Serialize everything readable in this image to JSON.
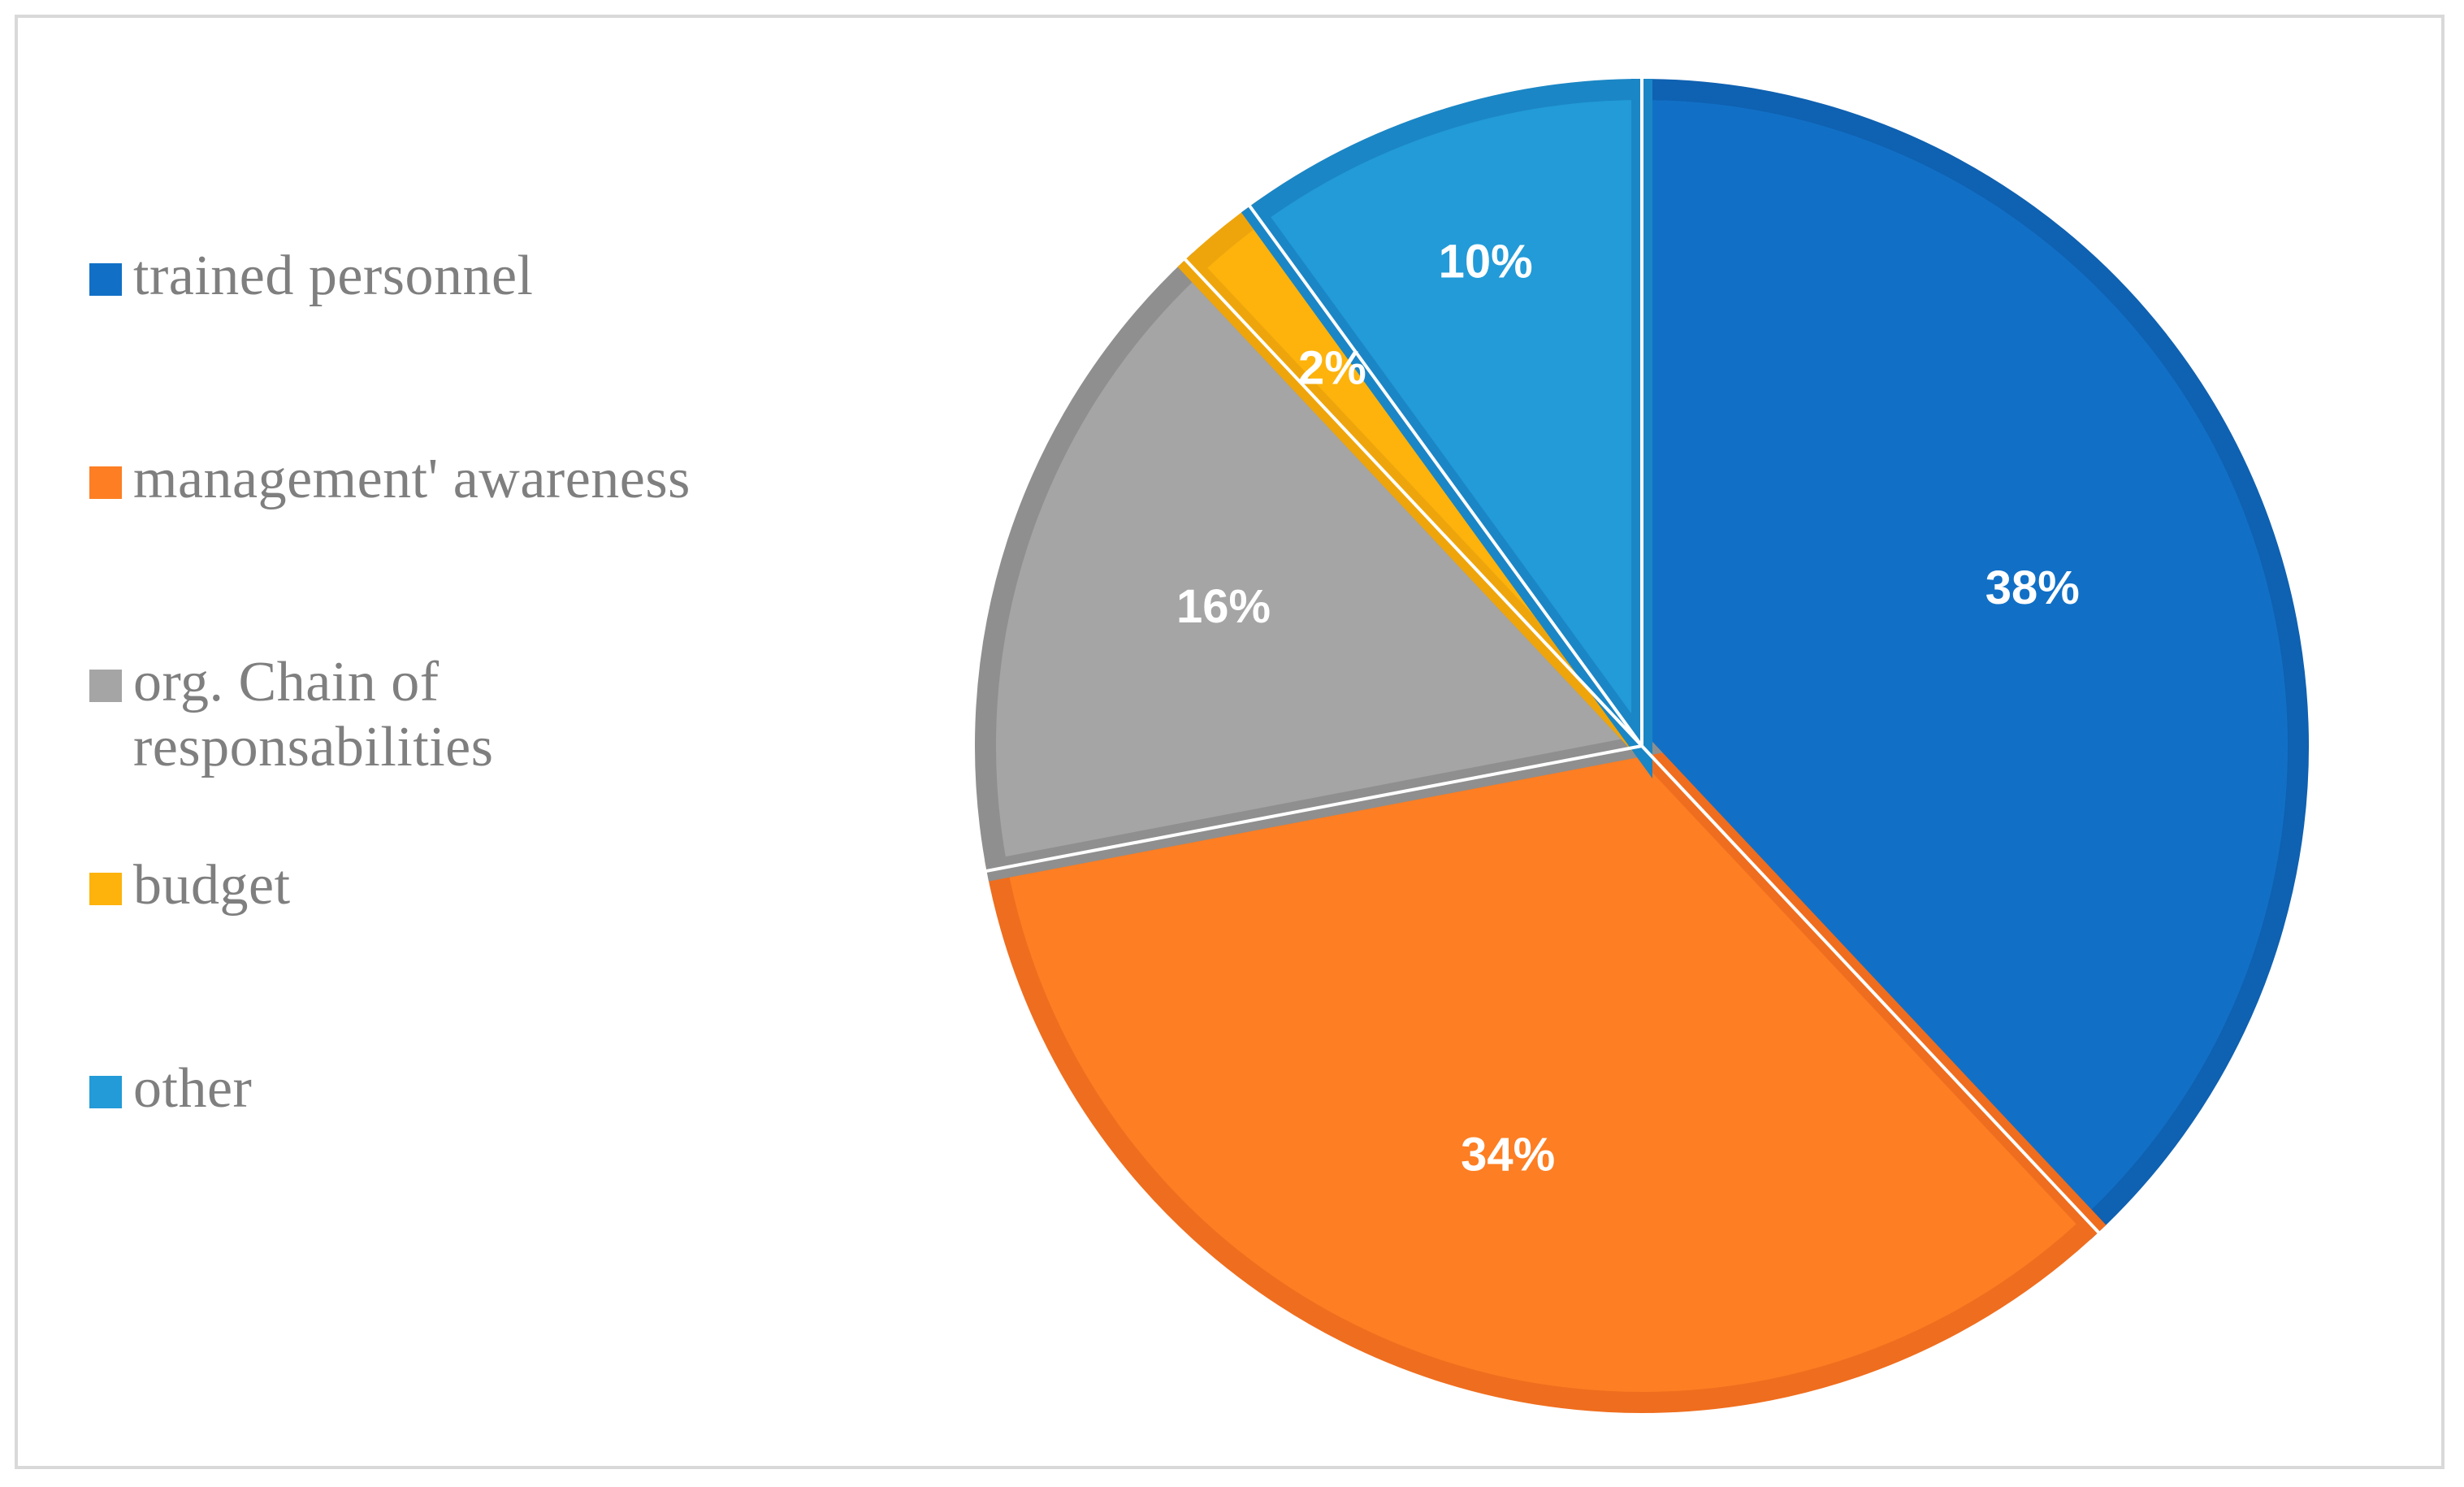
{
  "chart_data": {
    "type": "pie",
    "title": "",
    "start_angle_deg": 0,
    "direction": "clockwise",
    "legend_position": "left",
    "slices": [
      {
        "label": "trained personnel",
        "value": 38,
        "data_label": "38%",
        "color": "#1170c6",
        "edge": "#0f61b1"
      },
      {
        "label": "management' awareness",
        "value": 34,
        "data_label": "34%",
        "color": "#fd7e23",
        "edge": "#ef6d1e"
      },
      {
        "label": "org. Chain of responsabilities",
        "value": 16,
        "data_label": "16%",
        "color": "#a5a5a5",
        "edge": "#8f8f8f"
      },
      {
        "label": "budget",
        "value": 2,
        "data_label": "2%",
        "color": "#fdb30c",
        "edge": "#eea50c"
      },
      {
        "label": "other",
        "value": 10,
        "data_label": "10%",
        "color": "#229bd8",
        "edge": "#1b86c5"
      }
    ]
  }
}
